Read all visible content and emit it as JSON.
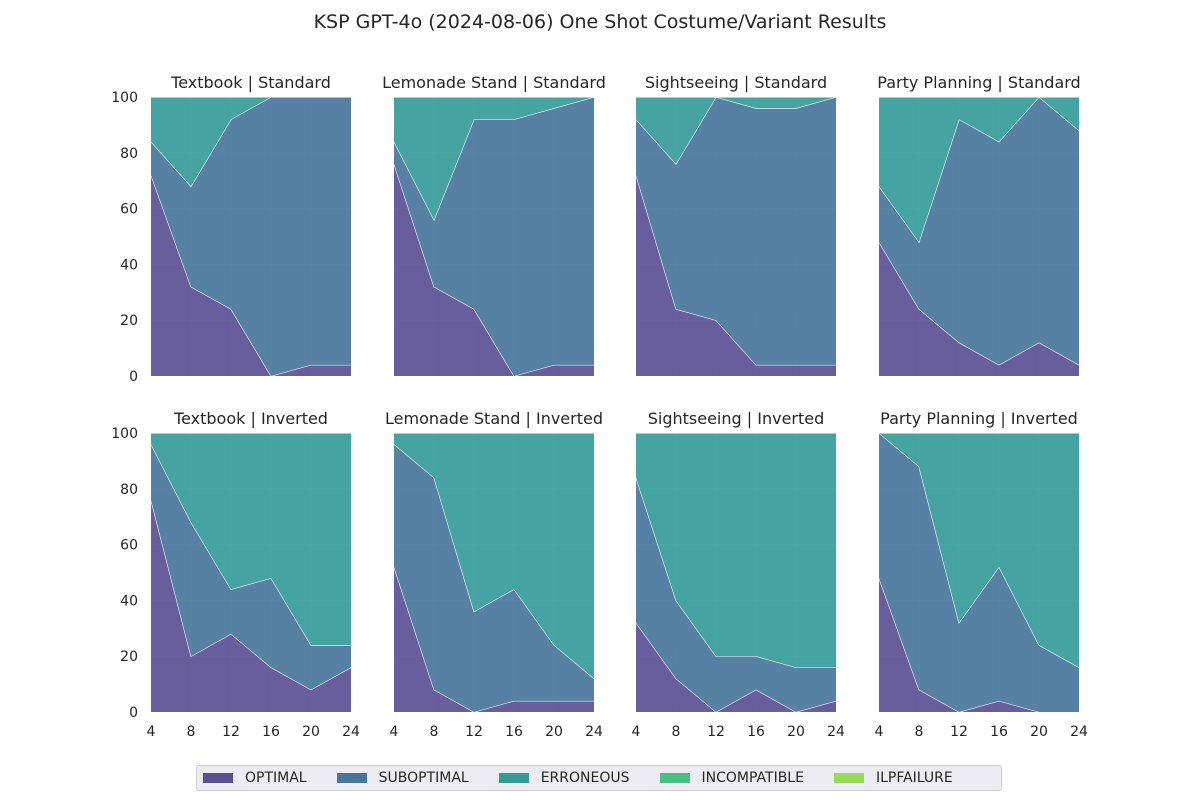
{
  "figure": {
    "suptitle": "KSP GPT-4o (2024-08-06) One Shot Costume/Variant Results"
  },
  "legend": {
    "placement": "bottom-center",
    "items": [
      {
        "label": "OPTIMAL",
        "color": "#5b4f94"
      },
      {
        "label": "SUBOPTIMAL",
        "color": "#47769b"
      },
      {
        "label": "ERRONEOUS",
        "color": "#339c98"
      },
      {
        "label": "INCOMPATIBLE",
        "color": "#47c081"
      },
      {
        "label": "ILPFAILURE",
        "color": "#97db58"
      }
    ]
  },
  "chart_data": [
    {
      "type": "area",
      "stacked": true,
      "title": "Textbook | Standard",
      "x": [
        4,
        8,
        12,
        16,
        20,
        24
      ],
      "ylim": [
        0,
        100
      ],
      "grid": true,
      "series": [
        {
          "name": "OPTIMAL",
          "values": [
            72,
            32,
            24,
            0,
            4,
            4
          ]
        },
        {
          "name": "SUBOPTIMAL",
          "values": [
            12,
            36,
            68,
            100,
            96,
            96
          ]
        },
        {
          "name": "ERRONEOUS",
          "values": [
            16,
            32,
            8,
            0,
            0,
            0
          ]
        },
        {
          "name": "INCOMPATIBLE",
          "values": [
            0,
            0,
            0,
            0,
            0,
            0
          ]
        },
        {
          "name": "ILPFAILURE",
          "values": [
            0,
            0,
            0,
            0,
            0,
            0
          ]
        }
      ]
    },
    {
      "type": "area",
      "stacked": true,
      "title": "Lemonade Stand | Standard",
      "x": [
        4,
        8,
        12,
        16,
        20,
        24
      ],
      "ylim": [
        0,
        100
      ],
      "grid": true,
      "series": [
        {
          "name": "OPTIMAL",
          "values": [
            76,
            32,
            24,
            0,
            4,
            4
          ]
        },
        {
          "name": "SUBOPTIMAL",
          "values": [
            8,
            24,
            68,
            92,
            92,
            96
          ]
        },
        {
          "name": "ERRONEOUS",
          "values": [
            16,
            44,
            8,
            8,
            4,
            0
          ]
        },
        {
          "name": "INCOMPATIBLE",
          "values": [
            0,
            0,
            0,
            0,
            0,
            0
          ]
        },
        {
          "name": "ILPFAILURE",
          "values": [
            0,
            0,
            0,
            0,
            0,
            0
          ]
        }
      ]
    },
    {
      "type": "area",
      "stacked": true,
      "title": "Sightseeing | Standard",
      "x": [
        4,
        8,
        12,
        16,
        20,
        24
      ],
      "ylim": [
        0,
        100
      ],
      "grid": true,
      "series": [
        {
          "name": "OPTIMAL",
          "values": [
            72,
            24,
            20,
            4,
            4,
            4
          ]
        },
        {
          "name": "SUBOPTIMAL",
          "values": [
            20,
            52,
            80,
            92,
            92,
            96
          ]
        },
        {
          "name": "ERRONEOUS",
          "values": [
            8,
            24,
            0,
            4,
            4,
            0
          ]
        },
        {
          "name": "INCOMPATIBLE",
          "values": [
            0,
            0,
            0,
            0,
            0,
            0
          ]
        },
        {
          "name": "ILPFAILURE",
          "values": [
            0,
            0,
            0,
            0,
            0,
            0
          ]
        }
      ]
    },
    {
      "type": "area",
      "stacked": true,
      "title": "Party Planning | Standard",
      "x": [
        4,
        8,
        12,
        16,
        20,
        24
      ],
      "ylim": [
        0,
        100
      ],
      "grid": true,
      "series": [
        {
          "name": "OPTIMAL",
          "values": [
            48,
            24,
            12,
            4,
            12,
            4
          ]
        },
        {
          "name": "SUBOPTIMAL",
          "values": [
            20,
            24,
            80,
            80,
            88,
            84
          ]
        },
        {
          "name": "ERRONEOUS",
          "values": [
            32,
            52,
            8,
            16,
            0,
            12
          ]
        },
        {
          "name": "INCOMPATIBLE",
          "values": [
            0,
            0,
            0,
            0,
            0,
            0
          ]
        },
        {
          "name": "ILPFAILURE",
          "values": [
            0,
            0,
            0,
            0,
            0,
            0
          ]
        }
      ]
    },
    {
      "type": "area",
      "stacked": true,
      "title": "Textbook | Inverted",
      "x": [
        4,
        8,
        12,
        16,
        20,
        24
      ],
      "ylim": [
        0,
        100
      ],
      "grid": true,
      "series": [
        {
          "name": "OPTIMAL",
          "values": [
            76,
            20,
            28,
            16,
            8,
            16
          ]
        },
        {
          "name": "SUBOPTIMAL",
          "values": [
            20,
            48,
            16,
            32,
            16,
            8
          ]
        },
        {
          "name": "ERRONEOUS",
          "values": [
            4,
            32,
            56,
            52,
            76,
            76
          ]
        },
        {
          "name": "INCOMPATIBLE",
          "values": [
            0,
            0,
            0,
            0,
            0,
            0
          ]
        },
        {
          "name": "ILPFAILURE",
          "values": [
            0,
            0,
            0,
            0,
            0,
            0
          ]
        }
      ]
    },
    {
      "type": "area",
      "stacked": true,
      "title": "Lemonade Stand | Inverted",
      "x": [
        4,
        8,
        12,
        16,
        20,
        24
      ],
      "ylim": [
        0,
        100
      ],
      "grid": true,
      "series": [
        {
          "name": "OPTIMAL",
          "values": [
            52,
            8,
            0,
            4,
            4,
            4
          ]
        },
        {
          "name": "SUBOPTIMAL",
          "values": [
            44,
            76,
            36,
            40,
            20,
            8
          ]
        },
        {
          "name": "ERRONEOUS",
          "values": [
            4,
            16,
            64,
            56,
            76,
            88
          ]
        },
        {
          "name": "INCOMPATIBLE",
          "values": [
            0,
            0,
            0,
            0,
            0,
            0
          ]
        },
        {
          "name": "ILPFAILURE",
          "values": [
            0,
            0,
            0,
            0,
            0,
            0
          ]
        }
      ]
    },
    {
      "type": "area",
      "stacked": true,
      "title": "Sightseeing | Inverted",
      "x": [
        4,
        8,
        12,
        16,
        20,
        24
      ],
      "ylim": [
        0,
        100
      ],
      "grid": true,
      "series": [
        {
          "name": "OPTIMAL",
          "values": [
            32,
            12,
            0,
            8,
            0,
            4
          ]
        },
        {
          "name": "SUBOPTIMAL",
          "values": [
            52,
            28,
            20,
            12,
            16,
            12
          ]
        },
        {
          "name": "ERRONEOUS",
          "values": [
            16,
            60,
            80,
            80,
            84,
            84
          ]
        },
        {
          "name": "INCOMPATIBLE",
          "values": [
            0,
            0,
            0,
            0,
            0,
            0
          ]
        },
        {
          "name": "ILPFAILURE",
          "values": [
            0,
            0,
            0,
            0,
            0,
            0
          ]
        }
      ]
    },
    {
      "type": "area",
      "stacked": true,
      "title": "Party Planning | Inverted",
      "x": [
        4,
        8,
        12,
        16,
        20,
        24
      ],
      "ylim": [
        0,
        100
      ],
      "grid": true,
      "series": [
        {
          "name": "OPTIMAL",
          "values": [
            48,
            8,
            0,
            4,
            0,
            0
          ]
        },
        {
          "name": "SUBOPTIMAL",
          "values": [
            52,
            80,
            32,
            48,
            24,
            16
          ]
        },
        {
          "name": "ERRONEOUS",
          "values": [
            0,
            12,
            68,
            48,
            76,
            84
          ]
        },
        {
          "name": "INCOMPATIBLE",
          "values": [
            0,
            0,
            0,
            0,
            0,
            0
          ]
        },
        {
          "name": "ILPFAILURE",
          "values": [
            0,
            0,
            0,
            0,
            0,
            0
          ]
        }
      ]
    }
  ],
  "axes": {
    "yticks": [
      0,
      20,
      40,
      60,
      80,
      100
    ],
    "xticks": [
      4,
      8,
      12,
      16,
      20,
      24
    ]
  }
}
